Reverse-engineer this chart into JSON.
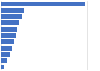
{
  "values": [
    49.0,
    13.5,
    12.0,
    10.5,
    9.5,
    8.5,
    7.5,
    6.5,
    5.0,
    3.5,
    1.5
  ],
  "bar_color": "#4472c4",
  "background_color": "#ffffff",
  "grid_color": "#d9d9d9",
  "xlim": [
    0,
    57
  ],
  "n_bars": 11,
  "bar_height": 0.75
}
